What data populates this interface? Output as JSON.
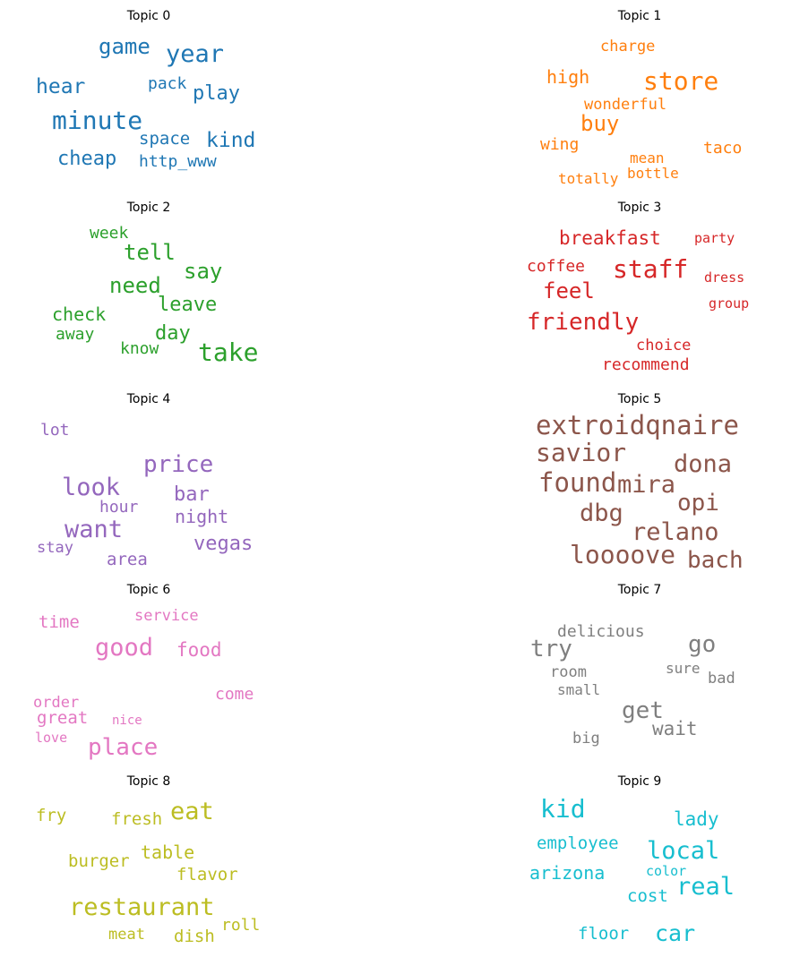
{
  "chart_data": {
    "type": "wordcloud",
    "topics": [
      {
        "title": "Topic 0",
        "color": "#1f77b4",
        "words": [
          "game",
          "year",
          "hear",
          "pack",
          "play",
          "minute",
          "space",
          "kind",
          "cheap",
          "http_www"
        ]
      },
      {
        "title": "Topic 1",
        "color": "#ff7f0e",
        "words": [
          "charge",
          "high",
          "store",
          "wonderful",
          "buy",
          "wing",
          "mean",
          "taco",
          "totally",
          "bottle"
        ]
      },
      {
        "title": "Topic 2",
        "color": "#2ca02c",
        "words": [
          "week",
          "tell",
          "say",
          "need",
          "leave",
          "check",
          "day",
          "away",
          "know",
          "take"
        ]
      },
      {
        "title": "Topic 3",
        "color": "#d62728",
        "words": [
          "breakfast",
          "party",
          "coffee",
          "staff",
          "dress",
          "feel",
          "group",
          "friendly",
          "choice",
          "recommend"
        ]
      },
      {
        "title": "Topic 4",
        "color": "#9467bd",
        "words": [
          "lot",
          "price",
          "look",
          "bar",
          "hour",
          "night",
          "want",
          "stay",
          "vegas",
          "area"
        ]
      },
      {
        "title": "Topic 5",
        "color": "#8c564b",
        "words": [
          "extroidqnaire",
          "savior",
          "dona",
          "found",
          "mira",
          "opi",
          "dbg",
          "relano",
          "loooove",
          "bach"
        ]
      },
      {
        "title": "Topic 6",
        "color": "#e377c2",
        "words": [
          "time",
          "service",
          "good",
          "food",
          "come",
          "order",
          "great",
          "nice",
          "love",
          "place"
        ]
      },
      {
        "title": "Topic 7",
        "color": "#7f7f7f",
        "words": [
          "delicious",
          "try",
          "go",
          "room",
          "sure",
          "bad",
          "small",
          "get",
          "wait",
          "big"
        ]
      },
      {
        "title": "Topic 8",
        "color": "#bcbd22",
        "words": [
          "fry",
          "fresh",
          "eat",
          "burger",
          "table",
          "flavor",
          "restaurant",
          "roll",
          "meat",
          "dish"
        ]
      },
      {
        "title": "Topic 9",
        "color": "#17becf",
        "words": [
          "kid",
          "lady",
          "employee",
          "local",
          "arizona",
          "color",
          "real",
          "cost",
          "floor",
          "car"
        ]
      }
    ]
  }
}
